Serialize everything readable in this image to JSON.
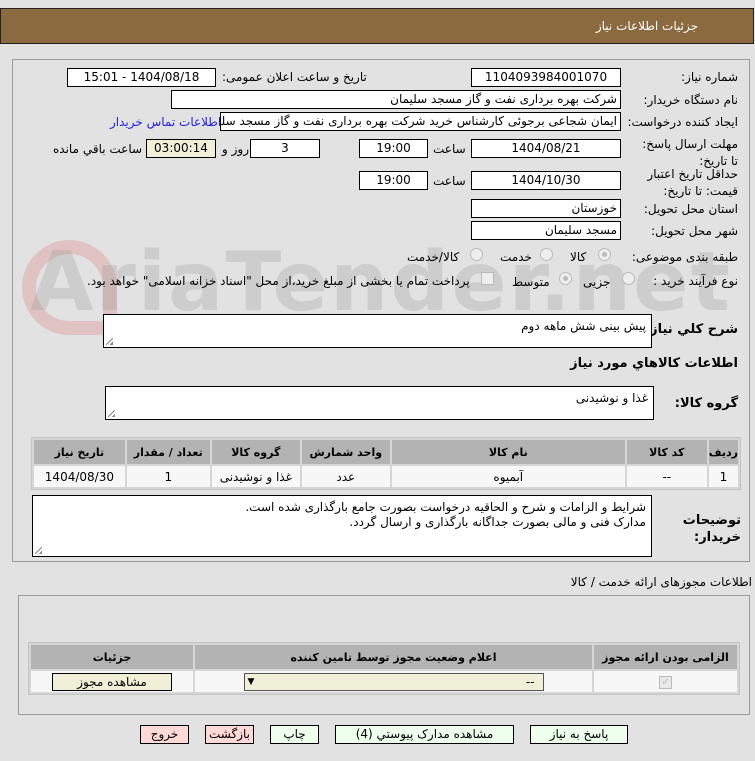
{
  "header": {
    "title": "جزئیات اطلاعات نیاز"
  },
  "watermark": "AriaTender.net",
  "form": {
    "need_number_label": "شماره نیاز:",
    "need_number": "1104093984001070",
    "announce_label": "تاریخ و ساعت اعلان عمومی:",
    "announce_value": "1404/08/18 - 15:01",
    "buyer_label": "نام دستگاه خریدار:",
    "buyer_value": "شرکت بهره برداری نفت و گاز مسجد سلیمان",
    "creator_label": "ایجاد کننده درخواست:",
    "creator_value": "ایمان شجاعی برجوئی کارشناس خرید شرکت بهره برداری نفت و گاز مسجد سلیمان",
    "contact_link": "اطلاعات تماس خریدار",
    "deadline_label": "مهلت ارسال پاسخ: تا تاریخ:",
    "deadline_date": "1404/08/21",
    "time_label": "ساعت",
    "deadline_time": "19:00",
    "days": "3",
    "days_label": "روز و",
    "remaining": "03:00:14",
    "remaining_label": "ساعت باقي مانده",
    "validity_label": "حداقل تاریخ اعتبار قیمت: تا تاریخ:",
    "validity_date": "1404/10/30",
    "validity_time": "19:00",
    "province_label": "استان محل تحویل:",
    "province_value": "خوزستان",
    "city_label": "شهر محل تحویل:",
    "city_value": "مسجد سلیمان",
    "category_label": "طبقه بندی موضوعی:",
    "category_options": [
      "کالا",
      "خدمت",
      "کالا/خدمت"
    ],
    "category_selected": "کالا",
    "process_label": "نوع فرآیند خرید :",
    "process_options": [
      "جزیی",
      "متوسط"
    ],
    "payment_note": "پرداخت تمام یا بخشی از مبلغ خرید،از محل \"اسناد خزانه اسلامی\" خواهد بود.",
    "summary_label": "شرح کلي نياز:",
    "summary_value": "پیش بینی شش ماهه دوم",
    "goods_section": "اطلاعات کالاهاي مورد نياز",
    "group_label": "گروه کالا:",
    "group_value": "غذا و نوشیدنی"
  },
  "goods_table": {
    "headers": [
      "ردیف",
      "کد کالا",
      "نام کالا",
      "واحد شمارش",
      "گروه کالا",
      "تعداد / مقدار",
      "تاریخ نیاز"
    ],
    "rows": [
      [
        "1",
        "--",
        "آبمیوه",
        "عدد",
        "غذا و نوشیدنی",
        "1",
        "1404/08/30"
      ]
    ]
  },
  "buyer_notes": {
    "label": "توضیحات خریدار:",
    "line1": "شرایط و الزامات و شرح و الحاقیه درخواست بصورت جامع بارگذاری شده است.",
    "line2": "مدارک فنی و مالی بصورت جداگانه بارگذاری و ارسال گردد."
  },
  "permits": {
    "title": "اطلاعات مجوزهای ارائه خدمت / کالا",
    "headers": [
      "الزامی بودن ارائه مجوز",
      "اعلام وضعیت مجوز توسط تامین کننده",
      "جزئیات"
    ],
    "select_value": "--",
    "view_button": "مشاهده مجوز",
    "required_checked": true
  },
  "buttons": {
    "reply": "پاسخ به نیاز",
    "attachments": "مشاهده مدارک پیوستي (4)",
    "print": "چاپ",
    "back": "بازگشت",
    "exit": "خروج"
  }
}
